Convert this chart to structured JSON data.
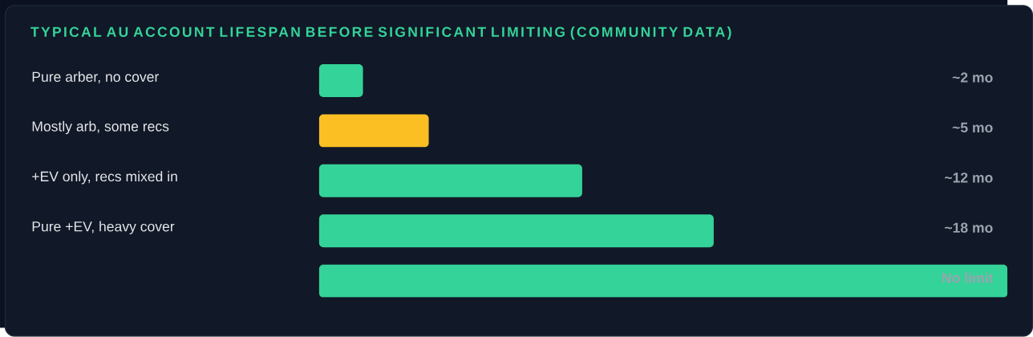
{
  "chart_data": {
    "type": "bar",
    "orientation": "horizontal",
    "title": "TYPICAL AU ACCOUNT LIFESPAN BEFORE SIGNIFICANT LIMITING (COMMUNITY DATA)",
    "categories": [
      "Pure arber, no cover",
      "Mostly arb, some recs",
      "+EV only, recs mixed in",
      "Pure +EV, heavy cover",
      null
    ],
    "values": [
      2,
      5,
      12,
      18,
      31.4
    ],
    "colors": [
      "#34d399",
      "#fbbf24",
      "#34d399",
      "#34d399",
      "#34d399"
    ],
    "value_labels": [
      "~2 mo",
      "~5 mo",
      "~12 mo",
      "~18 mo",
      "No limit"
    ]
  }
}
